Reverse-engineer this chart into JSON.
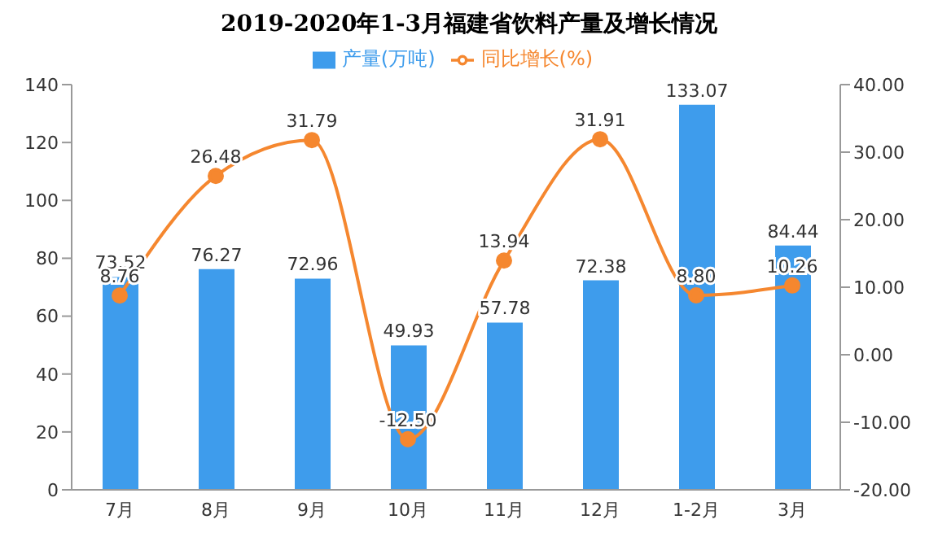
{
  "chart_data": {
    "type": "bar",
    "title": "2019-2020年1-3月福建省饮料产量及增长情况",
    "categories": [
      "7月",
      "8月",
      "9月",
      "10月",
      "11月",
      "12月",
      "1-2月",
      "3月"
    ],
    "series": [
      {
        "name": "产量(万吨)",
        "color": "#3e9cec",
        "values": [
          73.52,
          76.27,
          72.96,
          49.93,
          57.78,
          72.38,
          133.07,
          84.44
        ],
        "value_labels": [
          "73.52",
          "76.27",
          "72.96",
          "49.93",
          "57.78",
          "72.38",
          "133.07",
          "84.44"
        ]
      },
      {
        "name": "同比增长(%)",
        "type": "line",
        "axis": "y2",
        "color": "#f5872f",
        "marker": "circle",
        "values": [
          8.76,
          26.48,
          31.79,
          -12.5,
          13.94,
          31.91,
          8.8,
          10.26
        ],
        "value_labels": [
          "8.76",
          "26.48",
          "31.79",
          "-12.50",
          "13.94",
          "31.91",
          "8.80",
          "10.26"
        ]
      }
    ],
    "ylim": [
      0,
      140
    ],
    "yticks": [
      0,
      20,
      40,
      60,
      80,
      100,
      120,
      140
    ],
    "y2lim": [
      -20,
      40
    ],
    "y2ticks": [
      {
        "value": -20,
        "label": "-20.00"
      },
      {
        "value": -10,
        "label": "-10.00"
      },
      {
        "value": 0,
        "label": "0.00"
      },
      {
        "value": 10,
        "label": "10.00"
      },
      {
        "value": 20,
        "label": "20.00"
      },
      {
        "value": 30,
        "label": "30.00"
      },
      {
        "value": 40,
        "label": "40.00"
      }
    ],
    "legend": "top",
    "grid": false
  }
}
